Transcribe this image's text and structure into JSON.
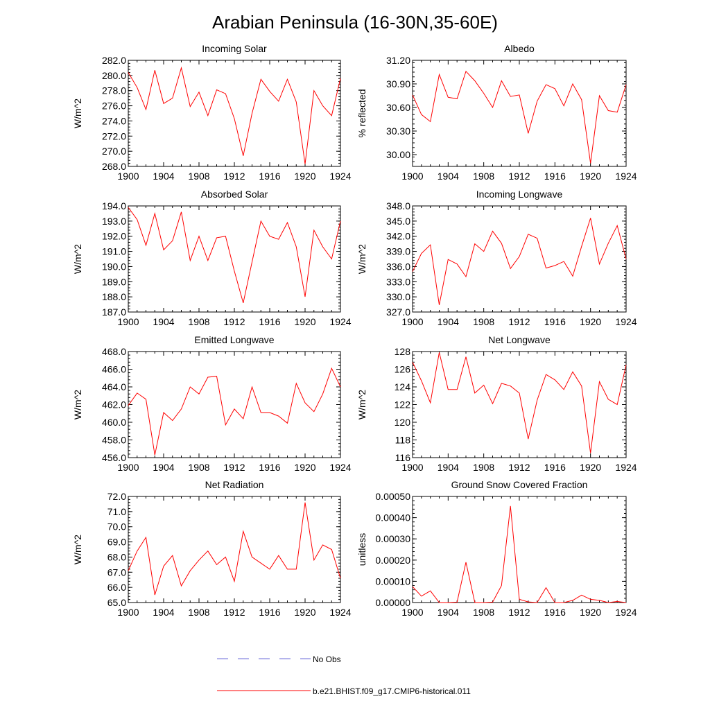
{
  "figure": {
    "title": "Arabian Peninsula (16-30N,35-60E)"
  },
  "legend": {
    "obs_label": "No Obs",
    "obs_color": "#6a6ad8",
    "model_label": "b.e21.BHIST.f09_g17.CMIP6-historical.011",
    "model_color": "#ff0000"
  },
  "chart_data": [
    {
      "type": "line",
      "title": "Incoming Solar",
      "ylabel": "W/m^2",
      "xlim": [
        1900,
        1924
      ],
      "ylim": [
        268,
        282
      ],
      "xticks": [
        1900,
        1904,
        1908,
        1912,
        1916,
        1920,
        1924
      ],
      "yticks": [
        "268.0",
        "270.0",
        "272.0",
        "274.0",
        "276.0",
        "278.0",
        "280.0",
        "282.0"
      ],
      "x": [
        1900,
        1901,
        1902,
        1903,
        1904,
        1905,
        1906,
        1907,
        1908,
        1909,
        1910,
        1911,
        1912,
        1913,
        1914,
        1915,
        1916,
        1917,
        1918,
        1919,
        1920,
        1921,
        1922,
        1923,
        1924
      ],
      "series": [
        {
          "values": [
            280.4,
            278.4,
            275.5,
            280.7,
            276.3,
            277.0,
            281.0,
            275.9,
            277.8,
            274.7,
            278.1,
            277.6,
            274.3,
            269.4,
            275.0,
            279.5,
            277.9,
            276.6,
            279.5,
            276.5,
            268.3,
            278.0,
            276.0,
            274.7,
            279.6
          ]
        }
      ]
    },
    {
      "type": "line",
      "title": "Albedo",
      "ylabel": "% reflected",
      "xlim": [
        1900,
        1924
      ],
      "ylim": [
        29.85,
        31.2
      ],
      "xticks": [
        1900,
        1904,
        1908,
        1912,
        1916,
        1920,
        1924
      ],
      "yticks": [
        "30.00",
        "30.30",
        "30.60",
        "30.90",
        "31.20"
      ],
      "x": [
        1900,
        1901,
        1902,
        1903,
        1904,
        1905,
        1906,
        1907,
        1908,
        1909,
        1910,
        1911,
        1912,
        1913,
        1914,
        1915,
        1916,
        1917,
        1918,
        1919,
        1920,
        1921,
        1922,
        1923,
        1924
      ],
      "series": [
        {
          "values": [
            30.76,
            30.51,
            30.42,
            31.02,
            30.73,
            30.71,
            31.06,
            30.94,
            30.78,
            30.6,
            30.94,
            30.74,
            30.76,
            30.27,
            30.68,
            30.89,
            30.84,
            30.62,
            30.9,
            30.7,
            29.89,
            30.75,
            30.56,
            30.54,
            30.89
          ]
        }
      ]
    },
    {
      "type": "line",
      "title": "Absorbed Solar",
      "ylabel": "W/m^2",
      "xlim": [
        1900,
        1924
      ],
      "ylim": [
        187,
        194
      ],
      "xticks": [
        1900,
        1904,
        1908,
        1912,
        1916,
        1920,
        1924
      ],
      "yticks": [
        "187.0",
        "188.0",
        "189.0",
        "190.0",
        "191.0",
        "192.0",
        "193.0",
        "194.0"
      ],
      "x": [
        1900,
        1901,
        1902,
        1903,
        1904,
        1905,
        1906,
        1907,
        1908,
        1909,
        1910,
        1911,
        1912,
        1913,
        1914,
        1915,
        1916,
        1917,
        1918,
        1919,
        1920,
        1921,
        1922,
        1923,
        1924
      ],
      "series": [
        {
          "values": [
            193.9,
            193.1,
            191.4,
            193.5,
            191.1,
            191.7,
            193.6,
            190.4,
            192.0,
            190.4,
            191.9,
            192.0,
            189.7,
            187.6,
            190.3,
            193.0,
            192.0,
            191.8,
            192.9,
            191.3,
            188.0,
            192.4,
            191.3,
            190.5,
            193.0
          ]
        }
      ]
    },
    {
      "type": "line",
      "title": "Incoming Longwave",
      "ylabel": "W/m^2",
      "xlim": [
        1900,
        1924
      ],
      "ylim": [
        327,
        348
      ],
      "xticks": [
        1900,
        1904,
        1908,
        1912,
        1916,
        1920,
        1924
      ],
      "yticks": [
        "327.0",
        "330.0",
        "333.0",
        "336.0",
        "339.0",
        "342.0",
        "345.0",
        "348.0"
      ],
      "x": [
        1900,
        1901,
        1902,
        1903,
        1904,
        1905,
        1906,
        1907,
        1908,
        1909,
        1910,
        1911,
        1912,
        1913,
        1914,
        1915,
        1916,
        1917,
        1918,
        1919,
        1920,
        1921,
        1922,
        1923,
        1924
      ],
      "series": [
        {
          "values": [
            335.0,
            338.6,
            340.3,
            328.4,
            337.4,
            336.5,
            334.0,
            340.5,
            339.0,
            343.0,
            340.6,
            335.6,
            338.0,
            342.4,
            341.6,
            335.7,
            336.2,
            337.0,
            334.1,
            340.0,
            345.6,
            336.5,
            340.6,
            344.1,
            337.5
          ]
        }
      ]
    },
    {
      "type": "line",
      "title": "Emitted Longwave",
      "ylabel": "W/m^2",
      "xlim": [
        1900,
        1924
      ],
      "ylim": [
        456,
        468
      ],
      "xticks": [
        1900,
        1904,
        1908,
        1912,
        1916,
        1920,
        1924
      ],
      "yticks": [
        "456.0",
        "458.0",
        "460.0",
        "462.0",
        "464.0",
        "466.0",
        "468.0"
      ],
      "x": [
        1900,
        1901,
        1902,
        1903,
        1904,
        1905,
        1906,
        1907,
        1908,
        1909,
        1910,
        1911,
        1912,
        1913,
        1914,
        1915,
        1916,
        1917,
        1918,
        1919,
        1920,
        1921,
        1922,
        1923,
        1924
      ],
      "series": [
        {
          "values": [
            461.9,
            463.3,
            462.6,
            456.3,
            461.1,
            460.2,
            461.5,
            464.0,
            463.2,
            465.1,
            465.2,
            459.7,
            461.5,
            460.4,
            464.0,
            461.1,
            461.1,
            460.7,
            459.9,
            464.4,
            462.2,
            461.2,
            463.2,
            466.1,
            464.0
          ]
        }
      ]
    },
    {
      "type": "line",
      "title": "Net Longwave",
      "ylabel": "W/m^2",
      "xlim": [
        1900,
        1924
      ],
      "ylim": [
        116,
        128
      ],
      "xticks": [
        1900,
        1904,
        1908,
        1912,
        1916,
        1920,
        1924
      ],
      "yticks": [
        "116",
        "118",
        "120",
        "122",
        "124",
        "126",
        "128"
      ],
      "x": [
        1900,
        1901,
        1902,
        1903,
        1904,
        1905,
        1906,
        1907,
        1908,
        1909,
        1910,
        1911,
        1912,
        1913,
        1914,
        1915,
        1916,
        1917,
        1918,
        1919,
        1920,
        1921,
        1922,
        1923,
        1924
      ],
      "series": [
        {
          "values": [
            126.8,
            124.7,
            122.2,
            127.9,
            123.7,
            123.7,
            127.4,
            123.3,
            124.2,
            122.1,
            124.4,
            124.1,
            123.3,
            118.1,
            122.5,
            125.4,
            124.8,
            123.7,
            125.7,
            124.1,
            116.5,
            124.6,
            122.6,
            122.0,
            126.5
          ]
        }
      ]
    },
    {
      "type": "line",
      "title": "Net Radiation",
      "ylabel": "W/m^2",
      "xlim": [
        1900,
        1924
      ],
      "ylim": [
        65,
        72
      ],
      "xticks": [
        1900,
        1904,
        1908,
        1912,
        1916,
        1920,
        1924
      ],
      "yticks": [
        "65.0",
        "66.0",
        "67.0",
        "68.0",
        "69.0",
        "70.0",
        "71.0",
        "72.0"
      ],
      "x": [
        1900,
        1901,
        1902,
        1903,
        1904,
        1905,
        1906,
        1907,
        1908,
        1909,
        1910,
        1911,
        1912,
        1913,
        1914,
        1915,
        1916,
        1917,
        1918,
        1919,
        1920,
        1921,
        1922,
        1923,
        1924
      ],
      "series": [
        {
          "values": [
            67.1,
            68.4,
            69.3,
            65.5,
            67.4,
            68.1,
            66.1,
            67.1,
            67.8,
            68.4,
            67.5,
            68.0,
            66.4,
            69.7,
            68.0,
            67.6,
            67.2,
            68.1,
            67.2,
            67.2,
            71.6,
            67.8,
            68.8,
            68.5,
            66.6
          ]
        }
      ]
    },
    {
      "type": "line",
      "title": "Ground Snow Covered Fraction",
      "ylabel": "unitless",
      "xlim": [
        1900,
        1924
      ],
      "ylim": [
        0,
        0.0005
      ],
      "xticks": [
        1900,
        1904,
        1908,
        1912,
        1916,
        1920,
        1924
      ],
      "yticks": [
        "0.00000",
        "0.00010",
        "0.00020",
        "0.00030",
        "0.00040",
        "0.00050"
      ],
      "x": [
        1900,
        1901,
        1902,
        1903,
        1904,
        1905,
        1906,
        1907,
        1908,
        1909,
        1910,
        1911,
        1912,
        1913,
        1914,
        1915,
        1916,
        1917,
        1918,
        1919,
        1920,
        1921,
        1922,
        1923,
        1924
      ],
      "series": [
        {
          "values": [
            7.5e-05,
            3e-05,
            5.5e-05,
            0.0,
            0.0,
            2e-06,
            0.00019,
            0.0,
            0.0,
            2e-06,
            8e-05,
            0.000455,
            1.5e-05,
            3e-06,
            0.0,
            7e-05,
            0.0,
            0.0,
            1e-05,
            3.5e-05,
            1.5e-05,
            1e-05,
            0.0,
            5e-06,
            0.0
          ]
        }
      ]
    }
  ]
}
